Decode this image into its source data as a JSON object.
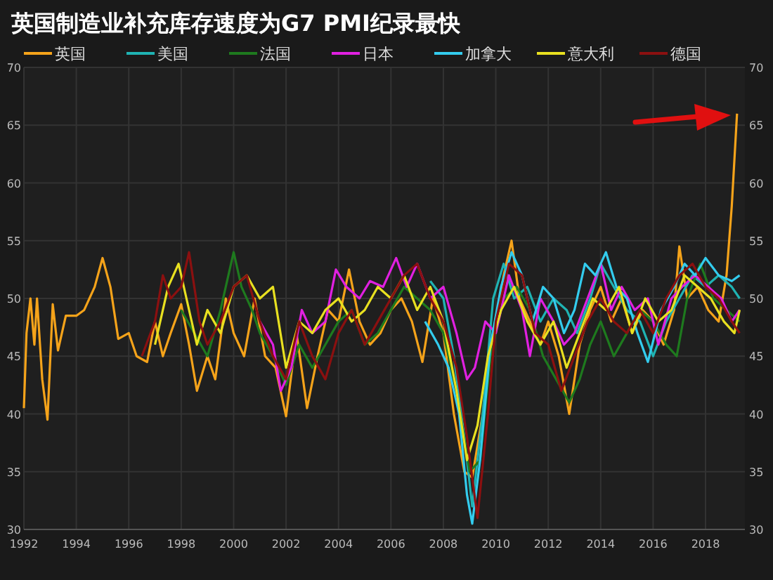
{
  "chart_data": {
    "type": "line",
    "title": "英国制造业补充库存速度为G7 PMI纪录最快",
    "xlim": [
      1992,
      2019.5
    ],
    "xticks": [
      1992,
      1994,
      1996,
      1998,
      2000,
      2002,
      2004,
      2006,
      2008,
      2010,
      2012,
      2014,
      2016,
      2018
    ],
    "ylim": [
      30,
      70
    ],
    "yticks": [
      30,
      35,
      40,
      45,
      50,
      55,
      60,
      65,
      70
    ],
    "y2lim": [
      30,
      70
    ],
    "y2ticks": [
      30,
      35,
      40,
      45,
      50,
      55,
      60,
      65,
      70
    ],
    "grid": true,
    "legend": "top",
    "line_style": "solid",
    "marker": "none",
    "series": [
      {
        "name": "英国",
        "color": "#f5a31a",
        "x": [
          1992.0,
          1992.1,
          1992.25,
          1992.4,
          1992.5,
          1992.7,
          1992.9,
          1993.1,
          1993.3,
          1993.6,
          1994.0,
          1994.3,
          1994.7,
          1995.0,
          1995.3,
          1995.6,
          1996.0,
          1996.3,
          1996.7,
          1997.0,
          1997.3,
          1997.6,
          1998.0,
          1998.3,
          1998.6,
          1999.0,
          1999.3,
          1999.7,
          2000.0,
          2000.4,
          2000.8,
          2001.2,
          2001.6,
          2002.0,
          2002.4,
          2002.8,
          2003.2,
          2003.6,
          2004.0,
          2004.4,
          2004.8,
          2005.2,
          2005.6,
          2006.0,
          2006.4,
          2006.8,
          2007.2,
          2007.6,
          2008.0,
          2008.4,
          2008.8,
          2009.1,
          2009.5,
          2009.9,
          2010.3,
          2010.6,
          2010.9,
          2011.3,
          2011.7,
          2012.0,
          2012.4,
          2012.8,
          2013.2,
          2013.6,
          2014.0,
          2014.4,
          2014.8,
          2015.2,
          2015.6,
          2016.0,
          2016.4,
          2016.8,
          2017.0,
          2017.3,
          2017.7,
          2018.1,
          2018.5,
          2018.8,
          2019.0,
          2019.2
        ],
        "values": [
          40.5,
          47,
          50,
          46,
          50,
          43,
          39.5,
          49.5,
          45.5,
          48.5,
          48.5,
          49,
          51,
          53.5,
          51,
          46.5,
          47,
          45,
          44.5,
          48,
          45,
          47,
          49.5,
          46,
          42,
          45,
          43,
          50,
          47,
          45,
          50,
          45,
          44,
          39.8,
          47,
          40.5,
          45,
          49,
          48,
          52.5,
          48,
          46,
          47,
          49,
          50,
          48,
          44.5,
          50,
          47,
          40,
          35,
          34.5,
          40,
          47,
          52,
          55,
          50,
          48,
          46,
          48,
          45,
          40,
          46,
          49,
          51,
          48,
          50,
          47,
          49,
          48,
          46,
          49,
          54.5,
          50,
          51,
          49,
          48,
          52,
          58,
          66
        ]
      },
      {
        "name": "美国",
        "color": "#1fb3b3",
        "x": [
          2007.5,
          2008.0,
          2008.4,
          2008.8,
          2009.1,
          2009.5,
          2009.9,
          2010.3,
          2010.7,
          2011.2,
          2011.7,
          2012.2,
          2012.7,
          2013.1,
          2013.6,
          2014.0,
          2014.5,
          2015.0,
          2015.5,
          2016.0,
          2016.5,
          2017.0,
          2017.5,
          2018.0,
          2018.5,
          2019.0,
          2019.3
        ],
        "values": [
          51.5,
          50,
          45,
          38,
          32,
          40,
          50,
          53,
          50,
          51,
          48,
          50,
          49,
          47,
          50,
          53,
          51,
          49,
          48,
          45,
          48,
          50,
          52,
          51,
          52,
          51,
          50
        ]
      },
      {
        "name": "法国",
        "color": "#1e7a1e",
        "x": [
          1998.0,
          1998.5,
          1999.0,
          1999.5,
          2000.0,
          2000.3,
          2000.7,
          2001.0,
          2001.5,
          2002.0,
          2002.5,
          2003.0,
          2003.5,
          2004.0,
          2004.5,
          2005.0,
          2005.5,
          2006.0,
          2006.5,
          2007.0,
          2007.5,
          2008.0,
          2008.5,
          2009.0,
          2009.4,
          2009.8,
          2010.3,
          2010.8,
          2011.3,
          2011.8,
          2012.3,
          2012.8,
          2013.2,
          2013.6,
          2014.0,
          2014.5,
          2015.0,
          2015.5,
          2016.0,
          2016.5,
          2016.9,
          2017.3,
          2017.8,
          2018.3,
          2018.8,
          2019.3
        ],
        "values": [
          49,
          47,
          45,
          49,
          54,
          51,
          49,
          47,
          45,
          42.5,
          46,
          44,
          46,
          48,
          49,
          46,
          47,
          49,
          51,
          50,
          49,
          47,
          42,
          35,
          36,
          45,
          50,
          51,
          49,
          45,
          43,
          41,
          43,
          46,
          48,
          45,
          47,
          49,
          48,
          46,
          45,
          50,
          53,
          50,
          49,
          48
        ]
      },
      {
        "name": "日本",
        "color": "#e020e0",
        "x": [
          2001.0,
          2001.5,
          2001.8,
          2002.2,
          2002.6,
          2003.0,
          2003.5,
          2003.9,
          2004.3,
          2004.8,
          2005.2,
          2005.7,
          2006.2,
          2006.6,
          2007.0,
          2007.5,
          2008.0,
          2008.5,
          2008.9,
          2009.2,
          2009.6,
          2010.0,
          2010.5,
          2011.0,
          2011.3,
          2011.7,
          2012.2,
          2012.6,
          2013.0,
          2013.5,
          2014.0,
          2014.4,
          2014.8,
          2015.3,
          2015.8,
          2016.2,
          2016.7,
          2017.1,
          2017.6,
          2018.1,
          2018.6,
          2019.0,
          2019.3
        ],
        "values": [
          48,
          46,
          42,
          44,
          49,
          47,
          48,
          52.5,
          51,
          50,
          51.5,
          51,
          53.5,
          51,
          53,
          50,
          51,
          47,
          43,
          44,
          48,
          47,
          52,
          49,
          45,
          50,
          48,
          46,
          47,
          50,
          53,
          49,
          51,
          49,
          50,
          46,
          50,
          51,
          52,
          51,
          50,
          48,
          49
        ]
      },
      {
        "name": "加拿大",
        "color": "#33ccee",
        "x": [
          2007.3,
          2007.8,
          2008.2,
          2008.6,
          2008.9,
          2009.1,
          2009.4,
          2009.8,
          2010.2,
          2010.6,
          2011.0,
          2011.4,
          2011.8,
          2012.2,
          2012.6,
          2013.0,
          2013.4,
          2013.8,
          2014.2,
          2014.6,
          2015.0,
          2015.4,
          2015.8,
          2016.3,
          2016.8,
          2017.2,
          2017.6,
          2018.0,
          2018.5,
          2019.0,
          2019.3
        ],
        "values": [
          48,
          46,
          44,
          40,
          33,
          30.5,
          36,
          46,
          51,
          54,
          52,
          48,
          51,
          50,
          47,
          49,
          53,
          52,
          54,
          51,
          50,
          47,
          44.5,
          49,
          51,
          53,
          52,
          53.5,
          52,
          51.5,
          52
        ]
      },
      {
        "name": "意大利",
        "color": "#e8e020",
        "x": [
          1997.0,
          1997.5,
          1997.9,
          1998.2,
          1998.6,
          1999.0,
          1999.5,
          2000.0,
          2000.5,
          2001.0,
          2001.5,
          2002.0,
          2002.5,
          2003.0,
          2003.5,
          2004.0,
          2004.5,
          2005.0,
          2005.5,
          2006.0,
          2006.5,
          2007.0,
          2007.5,
          2008.0,
          2008.5,
          2008.9,
          2009.3,
          2009.7,
          2010.2,
          2010.7,
          2011.2,
          2011.7,
          2012.2,
          2012.7,
          2013.2,
          2013.7,
          2014.2,
          2014.7,
          2015.2,
          2015.7,
          2016.2,
          2016.7,
          2017.2,
          2017.7,
          2018.2,
          2018.7,
          2019.1,
          2019.3
        ],
        "values": [
          46,
          51,
          53,
          50,
          46,
          49,
          47,
          51,
          52,
          50,
          51,
          44,
          48,
          47,
          49,
          50,
          48,
          49,
          51,
          50,
          52,
          49,
          51,
          48,
          42,
          36,
          39,
          45,
          49,
          51,
          48,
          46,
          48,
          44,
          47,
          50,
          49,
          51,
          47,
          50,
          48,
          49,
          52,
          51,
          50,
          48,
          47,
          49
        ]
      },
      {
        "name": "德国",
        "color": "#8b1010",
        "x": [
          1996.5,
          1997.0,
          1997.3,
          1997.6,
          1998.0,
          1998.3,
          1998.7,
          1999.0,
          1999.5,
          2000.0,
          2000.5,
          2001.0,
          2001.5,
          2002.0,
          2002.5,
          2003.0,
          2003.5,
          2004.0,
          2004.5,
          2005.0,
          2005.5,
          2006.0,
          2006.5,
          2007.0,
          2007.5,
          2008.0,
          2008.5,
          2008.9,
          2009.3,
          2009.7,
          2010.0,
          2010.5,
          2011.0,
          2011.5,
          2012.0,
          2012.5,
          2013.0,
          2013.5,
          2014.0,
          2014.5,
          2015.0,
          2015.5,
          2016.0,
          2016.5,
          2017.0,
          2017.5,
          2018.0,
          2018.5,
          2019.0,
          2019.3
        ],
        "values": [
          45,
          48,
          52,
          50,
          51,
          54,
          48,
          46,
          48,
          51,
          52,
          48,
          45,
          43,
          48,
          45,
          43,
          47,
          49,
          46,
          48,
          50,
          52,
          53,
          50,
          48,
          44,
          38,
          31,
          40,
          48,
          53,
          52,
          47,
          46,
          42,
          45,
          48,
          50,
          48,
          47,
          49,
          47,
          50,
          52,
          53,
          51,
          50,
          48,
          47
        ]
      }
    ]
  }
}
